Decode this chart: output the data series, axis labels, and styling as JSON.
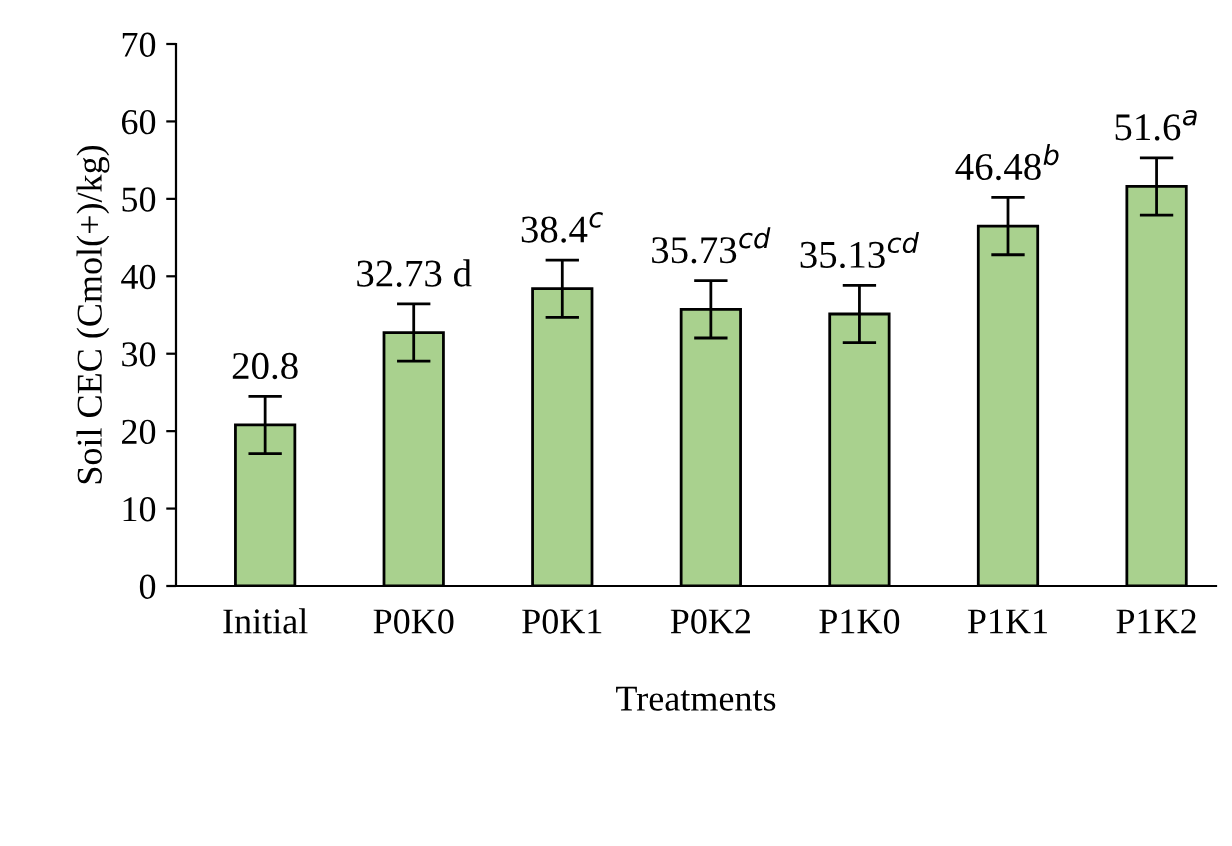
{
  "chart_data": {
    "type": "bar",
    "xlabel": "Treatments",
    "ylabel": "Soil CEC (Cmol(+)/kg)",
    "categories": [
      "Initial",
      "P0K0",
      "P0K1",
      "P0K2",
      "P1K0",
      "P1K1",
      "P1K2"
    ],
    "values": [
      20.8,
      32.73,
      38.4,
      35.73,
      35.13,
      46.48,
      51.6
    ],
    "errors": [
      3.7,
      3.7,
      3.7,
      3.7,
      3.7,
      3.7,
      3.7
    ],
    "color": "#a9d18e",
    "value_labels": [
      "20.8",
      "32.73 d",
      "38.4$^{c}$",
      "35.73$^{cd}$",
      "35.13$^{cd}$",
      "46.48$^{b}$",
      "51.6$^{a}$"
    ],
    "ylim": [
      0,
      70
    ],
    "yticks": [
      0,
      10,
      20,
      30,
      40,
      50,
      60,
      70
    ],
    "grid": false,
    "legend": false
  }
}
